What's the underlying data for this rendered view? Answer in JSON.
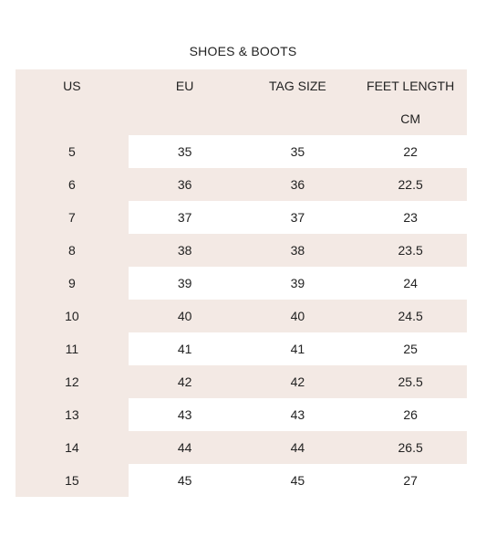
{
  "title": "SHOES & BOOTS",
  "columns": [
    "US",
    "EU",
    "TAG SIZE",
    "FEET LENGTH"
  ],
  "unit_row": [
    "",
    "",
    "",
    "CM"
  ],
  "rows": [
    [
      "5",
      "35",
      "35",
      "22"
    ],
    [
      "6",
      "36",
      "36",
      "22.5"
    ],
    [
      "7",
      "37",
      "37",
      "23"
    ],
    [
      "8",
      "38",
      "38",
      "23.5"
    ],
    [
      "9",
      "39",
      "39",
      "24"
    ],
    [
      "10",
      "40",
      "40",
      "24.5"
    ],
    [
      "11",
      "41",
      "41",
      "25"
    ],
    [
      "12",
      "42",
      "42",
      "25.5"
    ],
    [
      "13",
      "43",
      "43",
      "26"
    ],
    [
      "14",
      "44",
      "44",
      "26.5"
    ],
    [
      "15",
      "45",
      "45",
      "27"
    ]
  ],
  "colors": {
    "header_background": "#f3e9e4",
    "band_background": "#f3e9e4",
    "plain_background": "#ffffff",
    "text": "#222222"
  }
}
